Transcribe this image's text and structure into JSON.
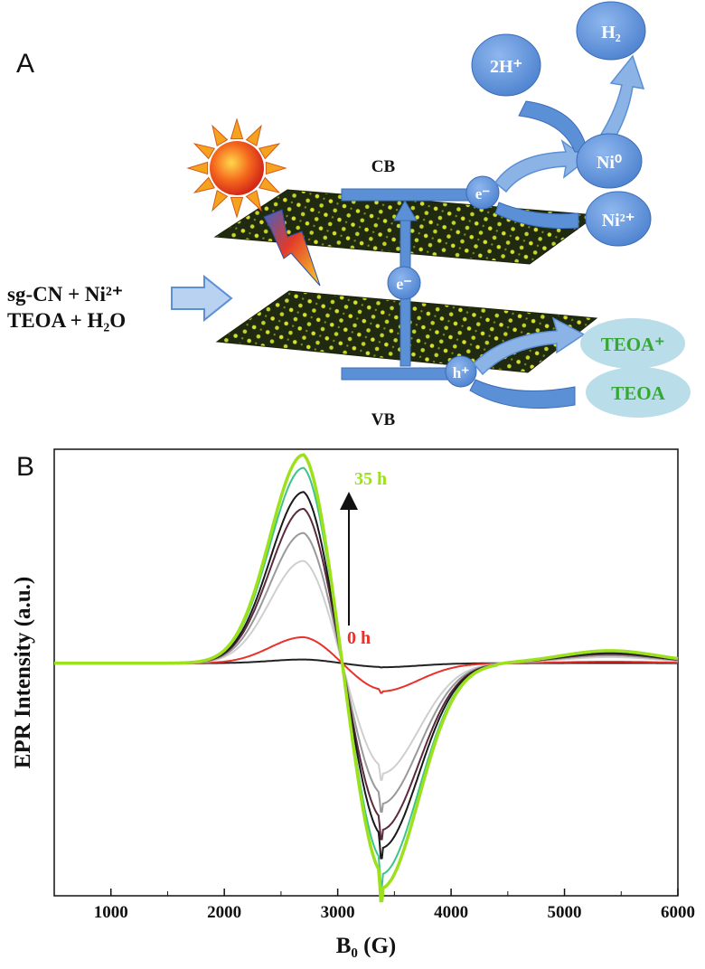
{
  "panel_a": {
    "label": "A",
    "reactants": {
      "line1": "sg-CN + Ni²⁺",
      "line2": "TEOA + H₂O"
    },
    "band_cb": "CB",
    "band_vb": "VB",
    "electron": "e⁻",
    "electron_cb": "e⁻",
    "hole": "h⁺",
    "ni0": "Ni⁰",
    "ni2": "Ni²⁺",
    "two_h": "2H⁺",
    "h2": "H₂",
    "teoa_plus": "TEOA⁺",
    "teoa": "TEOA"
  },
  "panel_b": {
    "label": "B"
  },
  "colors": {
    "bubble": "#5b8fd6",
    "arrow": "#8bb3e6",
    "teoa_bubble": "#b9dde9",
    "teoa_text": "#36a832",
    "sheet": "#1f2a10",
    "sheet_dots": "#d7e02a"
  },
  "chart_data": {
    "type": "line",
    "title": "",
    "xlabel": "B₀ (G)",
    "ylabel": "EPR Intensity (a.u.)",
    "xlim": [
      500,
      6000
    ],
    "ylim": [
      -1.25,
      1.15
    ],
    "xticks": [
      1000,
      2000,
      3000,
      4000,
      5000,
      6000
    ],
    "annotation_top": "35 h",
    "annotation_bottom": "0 h",
    "yticks_shown": false,
    "series": [
      {
        "color": "#222222",
        "amplitude": 0.02
      },
      {
        "color": "#e8312a",
        "amplitude": 0.14
      },
      {
        "color": "#cfcfcf",
        "amplitude": 0.55
      },
      {
        "color": "#999999",
        "amplitude": 0.7
      },
      {
        "color": "#5a2a3e",
        "amplitude": 0.83
      },
      {
        "color": "#1a1a1a",
        "amplitude": 0.92
      },
      {
        "color": "#3cc48a",
        "amplitude": 1.05
      },
      {
        "color": "#9de01c",
        "amplitude": 1.12
      }
    ],
    "peak_x": 2700,
    "trough_x": 3380,
    "crossing_x": 3020
  }
}
